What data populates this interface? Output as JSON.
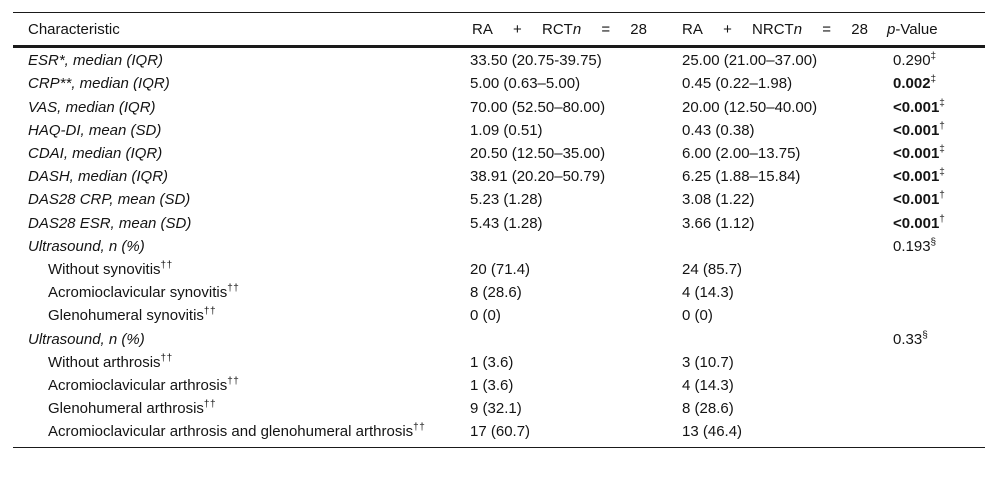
{
  "table": {
    "header": {
      "characteristic": "Characteristic",
      "rct": {
        "ra": "RA",
        "plus": "+",
        "name": "RCT",
        "n": "n",
        "eq": "=",
        "count": "28"
      },
      "nrct": {
        "ra": "RA",
        "plus": "+",
        "name": "NRCT",
        "n": "n",
        "eq": "=",
        "count": "28"
      },
      "pvalue": {
        "p": "p",
        "rest": "-Value"
      }
    },
    "rows": [
      {
        "label": "ESR*, median (IQR)",
        "italic": true,
        "rct": "33.50 (20.75-39.75)",
        "nrct": "25.00 (21.00–37.00)",
        "p": "0.290",
        "p_sup": "‡"
      },
      {
        "label": "CRP**, median (IQR)",
        "italic": true,
        "rct": "5.00 (0.63–5.00)",
        "nrct": "0.45 (0.22–1.98)",
        "p": "0.002",
        "p_sup": "‡",
        "p_bold": true
      },
      {
        "label": "VAS, median (IQR)",
        "italic": true,
        "rct": "70.00 (52.50–80.00)",
        "nrct": "20.00 (12.50–40.00)",
        "p": "<0.001",
        "p_sup": "‡",
        "p_bold": true
      },
      {
        "label": "HAQ-DI, mean (SD)",
        "italic": true,
        "rct": "1.09 (0.51)",
        "nrct": "0.43 (0.38)",
        "p": "<0.001",
        "p_sup": "†",
        "p_bold": true
      },
      {
        "label": "CDAI, median (IQR)",
        "italic": true,
        "rct": "20.50 (12.50–35.00)",
        "nrct": "6.00 (2.00–13.75)",
        "p": "<0.001",
        "p_sup": "‡",
        "p_bold": true
      },
      {
        "label": "DASH, median (IQR)",
        "italic": true,
        "rct": "38.91 (20.20–50.79)",
        "nrct": "6.25 (1.88–15.84)",
        "p": "<0.001",
        "p_sup": "‡",
        "p_bold": true
      },
      {
        "label": "DAS28 CRP, mean (SD)",
        "italic": true,
        "rct": "5.23 (1.28)",
        "nrct": "3.08 (1.22)",
        "p": "<0.001",
        "p_sup": "†",
        "p_bold": true
      },
      {
        "label": "DAS28 ESR, mean (SD)",
        "italic": true,
        "rct": "5.43 (1.28)",
        "nrct": "3.66 (1.12)",
        "p": "<0.001",
        "p_sup": "†",
        "p_bold": true
      },
      {
        "label": "Ultrasound, n (%)",
        "italic": true,
        "p": "0.193",
        "p_sup": "§"
      },
      {
        "label": "Without synovitis",
        "label_sup": "††",
        "indent": true,
        "rct": "20 (71.4)",
        "nrct": "24 (85.7)"
      },
      {
        "label": "Acromioclavicular synovitis",
        "label_sup": "††",
        "indent": true,
        "rct": "8 (28.6)",
        "nrct": "4 (14.3)"
      },
      {
        "label": "Glenohumeral synovitis",
        "label_sup": "††",
        "indent": true,
        "rct": "0 (0)",
        "nrct": "0 (0)"
      },
      {
        "label": "Ultrasound, n (%)",
        "italic": true,
        "p": "0.33",
        "p_sup": "§"
      },
      {
        "label": "Without arthrosis",
        "label_sup": "††",
        "indent": true,
        "rct": "1 (3.6)",
        "nrct": "3 (10.7)"
      },
      {
        "label": "Acromioclavicular arthrosis",
        "label_sup": "††",
        "indent": true,
        "rct": "1 (3.6)",
        "nrct": "4 (14.3)"
      },
      {
        "label": "Glenohumeral arthrosis",
        "label_sup": "††",
        "indent": true,
        "rct": "9 (32.1)",
        "nrct": "8 (28.6)"
      },
      {
        "label": "Acromioclavicular arthrosis and glenohumeral arthrosis",
        "label_sup": "††",
        "indent": true,
        "rct": "17 (60.7)",
        "nrct": "13 (46.4)"
      }
    ],
    "colors": {
      "text": "#141414",
      "rule": "#1a1a1a",
      "background": "#ffffff"
    }
  }
}
